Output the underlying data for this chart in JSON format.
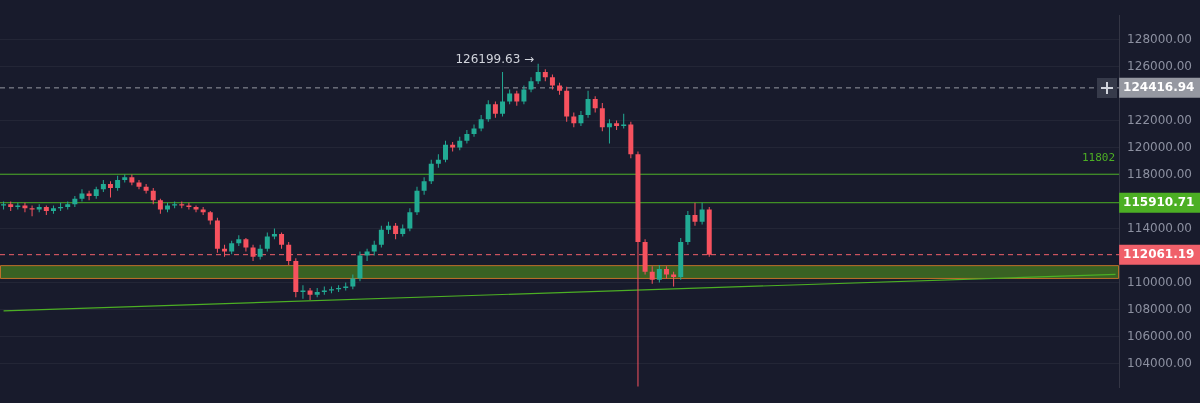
{
  "chart_data": {
    "type": "candlestick",
    "categories": [
      null,
      null,
      null,
      null,
      null,
      null,
      null,
      null,
      null,
      null,
      null,
      null,
      null,
      null,
      null,
      null,
      null,
      null,
      null,
      null,
      null,
      null,
      null,
      null,
      null,
      null,
      null,
      null,
      null,
      null,
      null,
      null,
      null,
      null,
      null,
      null,
      null,
      null,
      null,
      null,
      null,
      null,
      null,
      null,
      null,
      null,
      null,
      null,
      null,
      null,
      null,
      null,
      null,
      null,
      null,
      null,
      null,
      null,
      null,
      null,
      null,
      null,
      null,
      null,
      null,
      null,
      null,
      null,
      null,
      null,
      null,
      null,
      null,
      null,
      null,
      null,
      null,
      null,
      null,
      null,
      null,
      null,
      null,
      null,
      null,
      null,
      null,
      null,
      null,
      null,
      null,
      null,
      null,
      null,
      null,
      null,
      null,
      null,
      null,
      null,
      null,
      null,
      null,
      null,
      null,
      null,
      null,
      null,
      null,
      null,
      null,
      null,
      null,
      null,
      null,
      null,
      null,
      null,
      null,
      null,
      null,
      null,
      null,
      null,
      null,
      null,
      null,
      null,
      null,
      null,
      null,
      null,
      null,
      null,
      null,
      null,
      null,
      null,
      null,
      null,
      null,
      null,
      null,
      null,
      null,
      null,
      null,
      null,
      null,
      null,
      null,
      null,
      null,
      null,
      null,
      null,
      null
    ],
    "series": [
      {
        "ohlc": [
          [
            115700,
            116000,
            115400,
            115800
          ],
          [
            115800,
            116000,
            115300,
            115600
          ],
          [
            115600,
            115900,
            115400,
            115700
          ],
          [
            115700,
            115900,
            115200,
            115500
          ],
          [
            115500,
            115700,
            114900,
            115400
          ],
          [
            115400,
            115800,
            115200,
            115600
          ],
          [
            115600,
            115700,
            115000,
            115300
          ],
          [
            115300,
            115700,
            115100,
            115500
          ],
          [
            115500,
            115900,
            115300,
            115600
          ],
          [
            115600,
            116000,
            115400,
            115800
          ],
          [
            115800,
            116400,
            115600,
            116200
          ],
          [
            116200,
            116900,
            116000,
            116600
          ],
          [
            116600,
            116800,
            116100,
            116400
          ],
          [
            116400,
            117100,
            116200,
            116900
          ],
          [
            116900,
            117600,
            116700,
            117300
          ],
          [
            117300,
            117500,
            116300,
            117000
          ],
          [
            117000,
            117900,
            116800,
            117600
          ],
          [
            117600,
            118000,
            117400,
            117800
          ],
          [
            117800,
            118000,
            117200,
            117400
          ],
          [
            117400,
            117600,
            116900,
            117100
          ],
          [
            117100,
            117300,
            116600,
            116800
          ],
          [
            116800,
            117000,
            115800,
            116100
          ],
          [
            116100,
            116200,
            115100,
            115400
          ],
          [
            115400,
            115900,
            115200,
            115700
          ],
          [
            115700,
            116000,
            115500,
            115800
          ],
          [
            115800,
            116000,
            115500,
            115700
          ],
          [
            115700,
            115900,
            115400,
            115600
          ],
          [
            115600,
            115700,
            115200,
            115400
          ],
          [
            115400,
            115600,
            115000,
            115200
          ],
          [
            115200,
            115300,
            114300,
            114600
          ],
          [
            114600,
            114800,
            112200,
            112500
          ],
          [
            112500,
            112800,
            111900,
            112300
          ],
          [
            112300,
            113100,
            112100,
            112900
          ],
          [
            112900,
            113500,
            112700,
            113200
          ],
          [
            113200,
            113300,
            112300,
            112600
          ],
          [
            112600,
            112800,
            111600,
            111900
          ],
          [
            111900,
            112800,
            111700,
            112500
          ],
          [
            112500,
            113700,
            112300,
            113400
          ],
          [
            113400,
            114000,
            113200,
            113600
          ],
          [
            113600,
            113700,
            112500,
            112800
          ],
          [
            112800,
            113000,
            111300,
            111600
          ],
          [
            111600,
            111800,
            108900,
            109300
          ],
          [
            109300,
            109800,
            108800,
            109400
          ],
          [
            109400,
            109600,
            108700,
            109100
          ],
          [
            109100,
            109600,
            108900,
            109300
          ],
          [
            109300,
            109700,
            109100,
            109400
          ],
          [
            109400,
            109700,
            109200,
            109500
          ],
          [
            109500,
            109800,
            109300,
            109600
          ],
          [
            109600,
            110000,
            109400,
            109700
          ],
          [
            109700,
            110600,
            109500,
            110300
          ],
          [
            110300,
            112300,
            110100,
            112000
          ],
          [
            112000,
            112500,
            111600,
            112300
          ],
          [
            112300,
            113100,
            112000,
            112800
          ],
          [
            112800,
            114200,
            112600,
            113900
          ],
          [
            113900,
            114500,
            113600,
            114200
          ],
          [
            114200,
            114400,
            113200,
            113600
          ],
          [
            113600,
            114300,
            113400,
            114000
          ],
          [
            114000,
            115500,
            113800,
            115200
          ],
          [
            115200,
            117100,
            115000,
            116800
          ],
          [
            116800,
            117800,
            116500,
            117500
          ],
          [
            117500,
            119100,
            117300,
            118800
          ],
          [
            118800,
            119500,
            118500,
            119100
          ],
          [
            119100,
            120500,
            118900,
            120200
          ],
          [
            120200,
            120400,
            119700,
            120000
          ],
          [
            120000,
            120800,
            119800,
            120500
          ],
          [
            120500,
            121300,
            120300,
            121000
          ],
          [
            121000,
            121700,
            120800,
            121400
          ],
          [
            121400,
            122400,
            121200,
            122100
          ],
          [
            122100,
            123500,
            121900,
            123200
          ],
          [
            123200,
            123400,
            122200,
            122500
          ],
          [
            122500,
            125600,
            122300,
            123400
          ],
          [
            123400,
            124300,
            123200,
            124000
          ],
          [
            124000,
            124200,
            123100,
            123400
          ],
          [
            123400,
            124600,
            123200,
            124300
          ],
          [
            124300,
            125200,
            124100,
            124900
          ],
          [
            124900,
            126199.63,
            124700,
            125600
          ],
          [
            125600,
            125800,
            124900,
            125200
          ],
          [
            125200,
            125400,
            124300,
            124600
          ],
          [
            124600,
            124800,
            123900,
            124200
          ],
          [
            124200,
            124500,
            121900,
            122300
          ],
          [
            122300,
            122600,
            121500,
            121800
          ],
          [
            121800,
            122700,
            121600,
            122400
          ],
          [
            122400,
            124200,
            122200,
            123600
          ],
          [
            123600,
            123800,
            122600,
            122900
          ],
          [
            122900,
            123300,
            121200,
            121500
          ],
          [
            121500,
            122100,
            120300,
            121800
          ],
          [
            121800,
            122000,
            121300,
            121600
          ],
          [
            121600,
            122500,
            121400,
            121700
          ],
          [
            121700,
            121900,
            119200,
            119500
          ],
          [
            119500,
            119700,
            102300,
            113000
          ],
          [
            113000,
            113200,
            110600,
            110800
          ],
          [
            110800,
            111200,
            109900,
            110200
          ],
          [
            110200,
            111300,
            110000,
            111000
          ],
          [
            111000,
            111200,
            110300,
            110600
          ],
          [
            110600,
            110800,
            109700,
            110400
          ],
          [
            110400,
            113300,
            110200,
            113000
          ],
          [
            113000,
            115300,
            112800,
            115000
          ],
          [
            115000,
            115900,
            114200,
            114500
          ],
          [
            114500,
            115900,
            114300,
            115400
          ],
          [
            115400,
            115600,
            111900,
            112061.19
          ],
          null,
          null,
          null,
          null,
          null,
          null,
          null,
          null,
          null,
          null,
          null,
          null,
          null,
          null,
          null,
          null,
          null,
          null,
          null,
          null,
          null,
          null,
          null,
          null,
          null,
          null,
          null,
          null,
          null,
          null,
          null,
          null,
          null,
          null,
          null,
          null,
          null,
          null,
          null,
          null,
          null,
          null,
          null,
          null,
          null,
          null,
          null,
          null,
          null,
          null,
          null,
          null,
          null,
          null,
          null,
          null,
          null
        ]
      },
      {
        "type": "line",
        "color": "#4caf24",
        "values": [
          107900,
          null,
          null,
          null,
          null,
          null,
          null,
          null,
          null,
          null,
          null,
          null,
          null,
          null,
          null,
          null,
          null,
          null,
          null,
          null,
          null,
          null,
          null,
          null,
          null,
          null,
          null,
          null,
          null,
          null,
          null,
          null,
          null,
          null,
          null,
          null,
          null,
          null,
          null,
          null,
          null,
          null,
          null,
          null,
          null,
          null,
          null,
          null,
          null,
          null,
          null,
          null,
          null,
          null,
          null,
          null,
          null,
          null,
          null,
          null,
          null,
          null,
          null,
          null,
          null,
          null,
          null,
          null,
          null,
          null,
          null,
          null,
          null,
          null,
          null,
          null,
          null,
          null,
          null,
          null,
          null,
          null,
          null,
          null,
          null,
          null,
          null,
          null,
          null,
          null,
          null,
          null,
          null,
          null,
          null,
          null,
          null,
          null,
          null,
          null,
          null,
          null,
          null,
          null,
          null,
          null,
          null,
          null,
          null,
          null,
          null,
          null,
          null,
          null,
          null,
          null,
          null,
          null,
          null,
          null,
          null,
          null,
          null,
          null,
          null,
          null,
          null,
          null,
          null,
          null,
          null,
          null,
          null,
          null,
          null,
          null,
          null,
          null,
          null,
          null,
          null,
          null,
          null,
          null,
          null,
          null,
          null,
          null,
          null,
          null,
          null,
          null,
          null,
          null,
          null,
          null,
          110600
        ]
      }
    ],
    "ylim": [
      102200,
      129800
    ],
    "yticks": [
      {
        "value": 104000,
        "label": "104000.00"
      },
      {
        "value": 106000,
        "label": "106000.00"
      },
      {
        "value": 108000,
        "label": "108000.00"
      },
      {
        "value": 110000,
        "label": "110000.00"
      },
      {
        "value": 114000,
        "label": "114000.00"
      },
      {
        "value": 118000,
        "label": "118000.00"
      },
      {
        "value": 120000,
        "label": "120000.00"
      },
      {
        "value": 122000,
        "label": "122000.00"
      },
      {
        "value": 126000,
        "label": "126000.00"
      },
      {
        "value": 128000,
        "label": "128000.00"
      }
    ],
    "grid": "y",
    "legend": false,
    "ref_lines": [
      {
        "axis": "y",
        "value": 124416.94,
        "label": "124416.94",
        "color": "#9598a1",
        "line_style": "dashed"
      },
      {
        "axis": "y",
        "value": 118020,
        "color": "#4caf24",
        "line_style": "solid"
      },
      {
        "axis": "y",
        "value": 115910.71,
        "label": "115910.71",
        "color": "#4caf24",
        "line_style": "solid"
      },
      {
        "axis": "y",
        "value": 112061.19,
        "label": "112061.19",
        "color": "#f0606a",
        "line_style": "dashed"
      }
    ],
    "bands": [
      {
        "axis": "y",
        "from": 110300,
        "to": 111250,
        "color": "#3f6f22"
      }
    ],
    "annotations": [
      "126199.63 →",
      {
        "text": "11802",
        "y": 118020
      }
    ]
  }
}
